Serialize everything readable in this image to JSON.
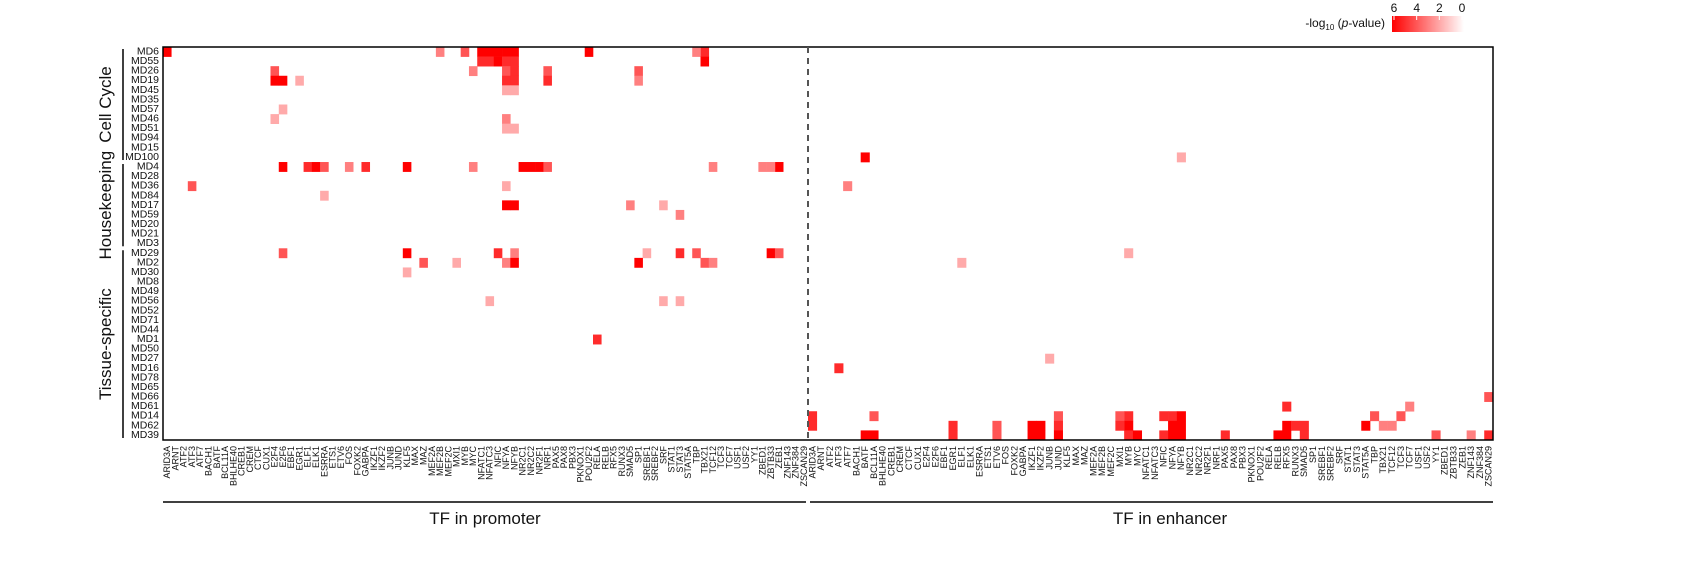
{
  "chart_data": {
    "type": "heatmap",
    "modules": [
      "MD6",
      "MD55",
      "MD26",
      "MD19",
      "MD45",
      "MD35",
      "MD57",
      "MD46",
      "MD51",
      "MD94",
      "MD15",
      "MD100",
      "MD4",
      "MD28",
      "MD36",
      "MD84",
      "MD17",
      "MD59",
      "MD20",
      "MD21",
      "MD3",
      "MD29",
      "MD2",
      "MD30",
      "MD8",
      "MD49",
      "MD56",
      "MD52",
      "MD71",
      "MD44",
      "MD1",
      "MD50",
      "MD27",
      "MD16",
      "MD78",
      "MD65",
      "MD66",
      "MD61",
      "MD14",
      "MD62",
      "MD39"
    ],
    "groups": [
      {
        "label": "Cell Cycle",
        "first": 0,
        "last": 11
      },
      {
        "label": "Housekeeping",
        "first": 12,
        "last": 20
      },
      {
        "label": "Tissue-specific",
        "first": 21,
        "last": 40
      }
    ],
    "promoter_tfs": [
      "ARID3A",
      "ARNT",
      "ATF2",
      "ATF3",
      "ATF7",
      "BACH1",
      "BATF",
      "BCL11A",
      "BHLHE40",
      "CREB1",
      "CREM",
      "CTCF",
      "CUX1",
      "E2F4",
      "E2F6",
      "EBF1",
      "EGR1",
      "ELF1",
      "ELK1",
      "ESRRA",
      "ETS1",
      "ETV6",
      "FOS",
      "FOXK2",
      "GABPA",
      "IKZF1",
      "IKZF2",
      "JUNB",
      "JUND",
      "KLF5",
      "MAX",
      "MAZ",
      "MEF2A",
      "MEF2B",
      "MEF2C",
      "MXI1",
      "MYB",
      "MYC",
      "NFATC1",
      "NFATC3",
      "NFIC",
      "NFYA",
      "NFYB",
      "NR2C1",
      "NR2C2",
      "NR2F1",
      "NRF1",
      "PAX5",
      "PAX8",
      "PBX3",
      "PKNOX1",
      "POU2F2",
      "RELA",
      "RELB",
      "RFX5",
      "RUNX3",
      "SMAD5",
      "SP1",
      "SREBF1",
      "SREBF2",
      "SRF",
      "STAT1",
      "STAT3",
      "STAT5A",
      "TBP",
      "TBX21",
      "TCF12",
      "TCF3",
      "TCF7",
      "USF1",
      "USF2",
      "YY1",
      "ZBED1",
      "ZBTB33",
      "ZEB1",
      "ZNF143",
      "ZNF384",
      "ZSCAN29"
    ],
    "enhancer_tfs": [
      "ARID3A",
      "ARNT",
      "ATF2",
      "ATF3",
      "ATF7",
      "BACH1",
      "BATF",
      "BCL11A",
      "BHLHE40",
      "CREB1",
      "CREM",
      "CTCF",
      "CUX1",
      "E2F4",
      "E2F6",
      "EBF1",
      "EGR1",
      "ELF1",
      "ELK1",
      "ESRRA",
      "ETS1",
      "ETV6",
      "FOS",
      "FOXK2",
      "GABPA",
      "IKZF1",
      "IKZF2",
      "JUNB",
      "JUND",
      "KLF5",
      "MAX",
      "MAZ",
      "MEF2A",
      "MEF2B",
      "MEF2C",
      "MXI1",
      "MYB",
      "MYC",
      "NFATC1",
      "NFATC3",
      "NFIC",
      "NFYA",
      "NFYB",
      "NR2C1",
      "NR2C2",
      "NR2F1",
      "NRF1",
      "PAX5",
      "PAX8",
      "PBX3",
      "PKNOX1",
      "POU2F2",
      "RELA",
      "RELB",
      "RFX5",
      "RUNX3",
      "SMAD5",
      "SP1",
      "SREBF1",
      "SREBF2",
      "SRF",
      "STAT1",
      "STAT3",
      "STAT5A",
      "TBP",
      "TBX21",
      "TCF12",
      "TCF3",
      "TCF7",
      "USF1",
      "USF2",
      "YY1",
      "ZBED1",
      "ZBTB33",
      "ZEB1",
      "ZNF143",
      "ZNF384",
      "ZSCAN29"
    ],
    "promoter_values": [
      [
        "MD6",
        "ARID3A",
        6
      ],
      [
        "MD6",
        "MEF2B",
        3
      ],
      [
        "MD6",
        "MYB",
        4
      ],
      [
        "MD6",
        "NFATC1",
        6
      ],
      [
        "MD6",
        "NFATC3",
        6
      ],
      [
        "MD6",
        "NFIC",
        6
      ],
      [
        "MD6",
        "NFYA",
        6
      ],
      [
        "MD6",
        "NFYB",
        6
      ],
      [
        "MD6",
        "POU2F2",
        6
      ],
      [
        "MD6",
        "TBX21",
        5
      ],
      [
        "MD6",
        "TBP",
        3
      ],
      [
        "MD55",
        "NFATC1",
        5
      ],
      [
        "MD55",
        "NFATC3",
        5
      ],
      [
        "MD55",
        "NFIC",
        6
      ],
      [
        "MD55",
        "NFYA",
        5
      ],
      [
        "MD55",
        "NFYB",
        5
      ],
      [
        "MD55",
        "TBX21",
        6
      ],
      [
        "MD26",
        "E2F4",
        4
      ],
      [
        "MD26",
        "NFYA",
        4
      ],
      [
        "MD26",
        "NFYB",
        5
      ],
      [
        "MD26",
        "NRF1",
        4
      ],
      [
        "MD26",
        "SP1",
        4
      ],
      [
        "MD26",
        "MYC",
        3
      ],
      [
        "MD19",
        "E2F4",
        6
      ],
      [
        "MD19",
        "E2F6",
        6
      ],
      [
        "MD19",
        "NFYA",
        5
      ],
      [
        "MD19",
        "NFYB",
        5
      ],
      [
        "MD19",
        "NRF1",
        5
      ],
      [
        "MD19",
        "EGR1",
        2
      ],
      [
        "MD19",
        "SP1",
        3
      ],
      [
        "MD45",
        "NFYA",
        2
      ],
      [
        "MD45",
        "NFYB",
        2
      ],
      [
        "MD57",
        "E2F6",
        2
      ],
      [
        "MD46",
        "E2F4",
        2
      ],
      [
        "MD46",
        "NFYA",
        3
      ],
      [
        "MD51",
        "NFYA",
        2
      ],
      [
        "MD51",
        "NFYB",
        2
      ],
      [
        "MD4",
        "E2F6",
        6
      ],
      [
        "MD4",
        "ELF1",
        5
      ],
      [
        "MD4",
        "ELK1",
        6
      ],
      [
        "MD4",
        "ESRRA",
        4
      ],
      [
        "MD4",
        "FOS",
        3
      ],
      [
        "MD4",
        "GABPA",
        5
      ],
      [
        "MD4",
        "KLF5",
        6
      ],
      [
        "MD4",
        "MYC",
        3
      ],
      [
        "MD4",
        "NR2C1",
        6
      ],
      [
        "MD4",
        "NR2C2",
        6
      ],
      [
        "MD4",
        "NR2F1",
        6
      ],
      [
        "MD4",
        "NRF1",
        4
      ],
      [
        "MD4",
        "ZBED1",
        3
      ],
      [
        "MD4",
        "ZEB1",
        6
      ],
      [
        "MD4",
        "ZBTB33",
        3
      ],
      [
        "MD4",
        "TCF12",
        3
      ],
      [
        "MD36",
        "ATF3",
        4
      ],
      [
        "MD36",
        "NFYA",
        2
      ],
      [
        "MD84",
        "ESRRA",
        2
      ],
      [
        "MD17",
        "NFYA",
        6
      ],
      [
        "MD17",
        "NFYB",
        6
      ],
      [
        "MD17",
        "SMAD5",
        3
      ],
      [
        "MD17",
        "SRF",
        2
      ],
      [
        "MD59",
        "STAT3",
        3
      ],
      [
        "MD29",
        "E2F6",
        4
      ],
      [
        "MD29",
        "KLF5",
        6
      ],
      [
        "MD29",
        "NFIC",
        5
      ],
      [
        "MD29",
        "NFYB",
        3
      ],
      [
        "MD29",
        "SREBF1",
        2
      ],
      [
        "MD29",
        "STAT3",
        5
      ],
      [
        "MD29",
        "TBP",
        4
      ],
      [
        "MD29",
        "ZBTB33",
        6
      ],
      [
        "MD29",
        "ZEB1",
        4
      ],
      [
        "MD2",
        "MAZ",
        4
      ],
      [
        "MD2",
        "NFYA",
        3
      ],
      [
        "MD2",
        "NFYB",
        6
      ],
      [
        "MD2",
        "SP1",
        6
      ],
      [
        "MD2",
        "TBX21",
        4
      ],
      [
        "MD2",
        "TCF12",
        3
      ],
      [
        "MD2",
        "MXI1",
        2
      ],
      [
        "MD30",
        "KLF5",
        2
      ],
      [
        "MD56",
        "NFATC3",
        2
      ],
      [
        "MD56",
        "SRF",
        2
      ],
      [
        "MD56",
        "STAT3",
        2
      ],
      [
        "MD1",
        "RELA",
        5
      ]
    ],
    "enhancer_values": [
      [
        "MD100",
        "BATF",
        6
      ],
      [
        "MD100",
        "NFYB",
        2
      ],
      [
        "MD36",
        "ATF7",
        3
      ],
      [
        "MD29",
        "MYB",
        2
      ],
      [
        "MD2",
        "ELF1",
        2
      ],
      [
        "MD16",
        "ATF3",
        5
      ],
      [
        "MD27",
        "JUNB",
        2
      ],
      [
        "MD66",
        "ZSCAN29",
        4
      ],
      [
        "MD61",
        "RFX5",
        5
      ],
      [
        "MD61",
        "TCF7",
        3
      ],
      [
        "MD14",
        "ARID3A",
        5
      ],
      [
        "MD14",
        "BCL11A",
        4
      ],
      [
        "MD14",
        "MYB",
        5
      ],
      [
        "MD14",
        "MXI1",
        4
      ],
      [
        "MD14",
        "NFIC",
        5
      ],
      [
        "MD14",
        "NFYA",
        5
      ],
      [
        "MD14",
        "NFYB",
        6
      ],
      [
        "MD14",
        "JUND",
        4
      ],
      [
        "MD14",
        "TBP",
        4
      ],
      [
        "MD14",
        "TCF3",
        4
      ],
      [
        "MD62",
        "ARID3A",
        5
      ],
      [
        "MD62",
        "EGR1",
        5
      ],
      [
        "MD62",
        "IKZF1",
        6
      ],
      [
        "MD62",
        "IKZF2",
        6
      ],
      [
        "MD62",
        "JUND",
        5
      ],
      [
        "MD62",
        "MYB",
        6
      ],
      [
        "MD62",
        "MXI1",
        5
      ],
      [
        "MD62",
        "NFYA",
        6
      ],
      [
        "MD62",
        "NFYB",
        6
      ],
      [
        "MD62",
        "RFX5",
        6
      ],
      [
        "MD62",
        "RUNX3",
        5
      ],
      [
        "MD62",
        "SMAD5",
        5
      ],
      [
        "MD62",
        "STAT5A",
        6
      ],
      [
        "MD62",
        "TBX21",
        3
      ],
      [
        "MD62",
        "TCF12",
        3
      ],
      [
        "MD62",
        "ETV6",
        4
      ],
      [
        "MD39",
        "BATF",
        6
      ],
      [
        "MD39",
        "BCL11A",
        6
      ],
      [
        "MD39",
        "EGR1",
        5
      ],
      [
        "MD39",
        "IKZF1",
        6
      ],
      [
        "MD39",
        "IKZF2",
        6
      ],
      [
        "MD39",
        "JUND",
        6
      ],
      [
        "MD39",
        "MYB",
        5
      ],
      [
        "MD39",
        "MYC",
        6
      ],
      [
        "MD39",
        "NFIC",
        5
      ],
      [
        "MD39",
        "NFYA",
        6
      ],
      [
        "MD39",
        "NFYB",
        6
      ],
      [
        "MD39",
        "PAX5",
        5
      ],
      [
        "MD39",
        "RFX5",
        6
      ],
      [
        "MD39",
        "RELB",
        6
      ],
      [
        "MD39",
        "SMAD5",
        5
      ],
      [
        "MD39",
        "YY1",
        4
      ],
      [
        "MD39",
        "ZNF143",
        3
      ],
      [
        "MD39",
        "ZSCAN29",
        5
      ],
      [
        "MD39",
        "ETV6",
        4
      ]
    ],
    "xlabel_left": "TF in promoter",
    "xlabel_right": "TF in enhancer",
    "legend_title": "-log10 (p-value)",
    "legend_ticks": [
      "6",
      "4",
      "2",
      "0"
    ],
    "value_range": [
      0,
      6
    ],
    "colors": {
      "high": "#ff0000",
      "low": "#ffffff",
      "grid_line": "#555555"
    }
  }
}
